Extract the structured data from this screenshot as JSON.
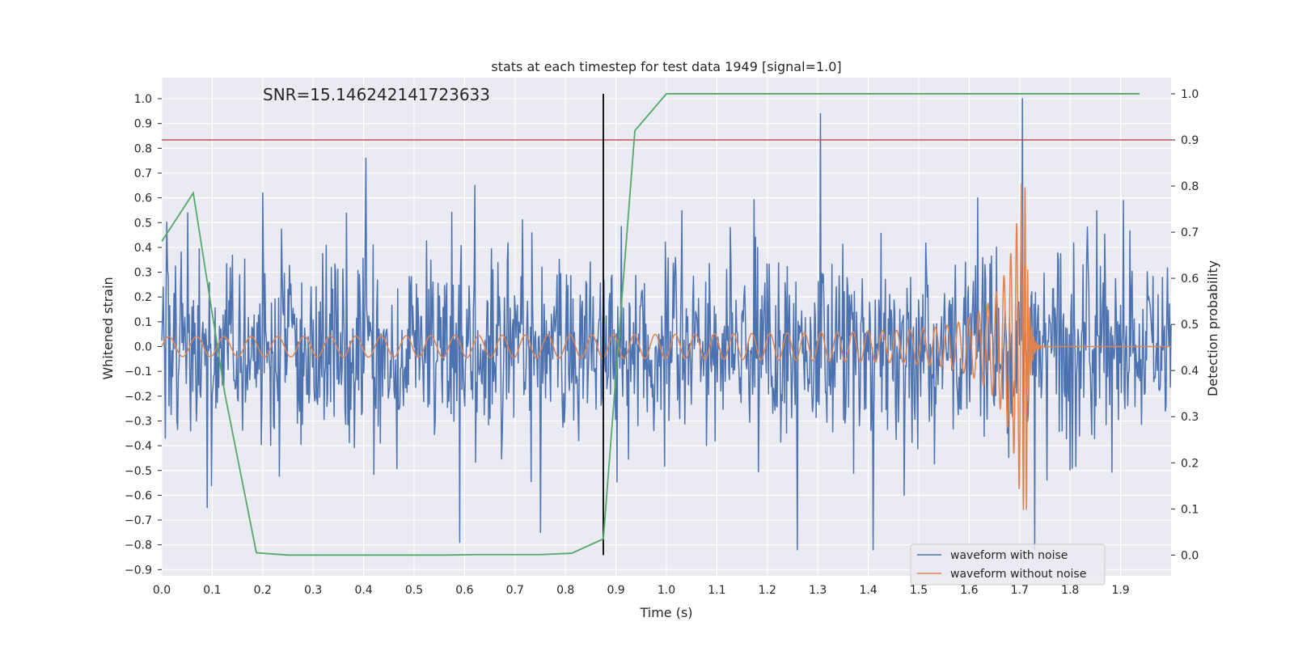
{
  "chart_data": {
    "type": "line",
    "title": "stats at each timestep for test data 1949 [signal=1.0]",
    "annotation": "SNR=15.146242141723633",
    "xlabel": "Time (s)",
    "ylabel": "Whitened strain",
    "y2label": "Detection probability",
    "xlim": [
      0.0,
      2.0
    ],
    "ylim": [
      -0.925,
      1.085
    ],
    "y2lim": [
      -0.045,
      1.035
    ],
    "x_ticks": [
      "0.0",
      "0.1",
      "0.2",
      "0.3",
      "0.4",
      "0.5",
      "0.6",
      "0.7",
      "0.8",
      "0.9",
      "1.0",
      "1.1",
      "1.2",
      "1.3",
      "1.4",
      "1.5",
      "1.6",
      "1.7",
      "1.8",
      "1.9"
    ],
    "y_ticks": [
      "1.0",
      "0.9",
      "0.8",
      "0.7",
      "0.6",
      "0.5",
      "0.4",
      "0.3",
      "0.2",
      "0.1",
      "0.0",
      "−0.1",
      "−0.2",
      "−0.3",
      "−0.4",
      "−0.5",
      "−0.6",
      "−0.7",
      "−0.8",
      "−0.9"
    ],
    "y2_ticks": [
      "1.0",
      "0.9",
      "0.8",
      "0.7",
      "0.6",
      "0.5",
      "0.4",
      "0.3",
      "0.2",
      "0.1",
      "0.0"
    ],
    "grid": true,
    "legend_position": "bottom-right",
    "threshold_line": {
      "axis": "y2",
      "value": 0.9,
      "color": "#c44e52"
    },
    "marker_line": {
      "x": 0.875,
      "y2_range": [
        0.0,
        1.0
      ],
      "color": "#000000"
    },
    "series": [
      {
        "name": "waveform with noise",
        "axis": "y",
        "color": "#4c72b0",
        "kind": "noise",
        "n_points": 1400,
        "std": 0.19,
        "extremes": [
          {
            "x": 0.405,
            "y": 0.76
          },
          {
            "x": 1.305,
            "y": 0.94
          },
          {
            "x": 1.705,
            "y": 1.0
          },
          {
            "x": 0.59,
            "y": -0.79
          },
          {
            "x": 1.26,
            "y": -0.82
          },
          {
            "x": 1.41,
            "y": -0.82
          },
          {
            "x": 1.73,
            "y": -0.82
          },
          {
            "x": 0.2,
            "y": 0.62
          },
          {
            "x": 0.62,
            "y": 0.65
          },
          {
            "x": 0.09,
            "y": -0.65
          },
          {
            "x": 0.75,
            "y": -0.75
          }
        ]
      },
      {
        "name": "waveform without noise",
        "axis": "y",
        "color": "#dd8452",
        "kind": "chirp",
        "t_merge": 1.715,
        "f_start": 18,
        "peak_amplitude": 0.66,
        "early_amplitude": 0.04
      },
      {
        "name": "detection probability",
        "axis": "y2",
        "color": "#55a868",
        "x": [
          0.0,
          0.0625,
          0.125,
          0.1875,
          0.25,
          0.3125,
          0.375,
          0.4375,
          0.5,
          0.5625,
          0.625,
          0.6875,
          0.75,
          0.8125,
          0.875,
          0.9375,
          1.0,
          1.0625,
          1.125,
          1.1875,
          1.25,
          1.3125,
          1.375,
          1.4375,
          1.5,
          1.5625,
          1.625,
          1.6875,
          1.75,
          1.8125,
          1.875,
          1.9375
        ],
        "values": [
          0.68,
          0.785,
          0.35,
          0.005,
          0.0,
          0.0,
          0.0,
          0.0,
          0.0,
          0.0,
          0.001,
          0.001,
          0.001,
          0.004,
          0.035,
          0.92,
          1.0,
          1.0,
          1.0,
          1.0,
          1.0,
          1.0,
          1.0,
          1.0,
          1.0,
          1.0,
          1.0,
          1.0,
          1.0,
          1.0,
          1.0,
          1.0
        ]
      }
    ]
  }
}
